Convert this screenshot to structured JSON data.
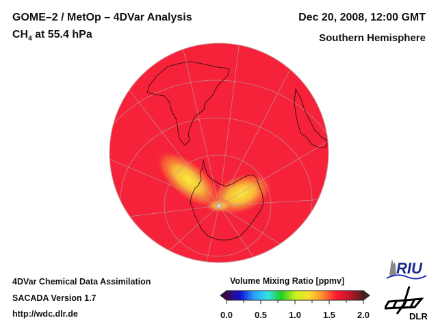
{
  "header": {
    "title": "GOME–2 / MetOp – 4DVar Analysis",
    "species": "CH",
    "species_sub": "4",
    "level": " at 55.4 hPa",
    "date": "Dec 20, 2008, 12:00 GMT",
    "region": "Southern Hemisphere"
  },
  "footer": {
    "line1": "4DVar Chemical Data Assimilation",
    "line2": "SACADA Version 1.7",
    "line3": "http://wdc.dlr.de"
  },
  "colorbar": {
    "title": "Volume Mixing Ratio [ppmv]",
    "ticks": [
      "0.0",
      "0.5",
      "1.0",
      "1.5",
      "2.0"
    ],
    "range": [
      0.0,
      2.0
    ],
    "colors": [
      "#3a0a4a",
      "#1010d0",
      "#2aa0ff",
      "#33e0e8",
      "#20d020",
      "#c8f020",
      "#f8e030",
      "#ff9030",
      "#ff1a30",
      "#c01428",
      "#4a2020"
    ]
  },
  "map": {
    "background_color": "#f5223a",
    "enhanced_color": "#f8e23a",
    "icon": "polar-stereographic-globe"
  },
  "logos": {
    "riu": "RIU",
    "dlr": "DLR"
  }
}
